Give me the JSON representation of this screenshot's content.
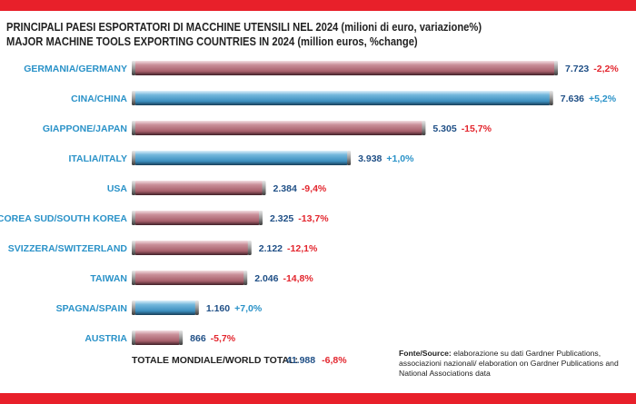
{
  "header": {
    "title_it": "PRINCIPALI PAESI ESPORTATORI DI MACCHINE UTENSILI NEL 2024 (milioni di euro, variazione%)",
    "title_en": "MAJOR MACHINE TOOLS EXPORTING COUNTRIES IN 2024 (million euros, %change)"
  },
  "colors": {
    "top_bar": "#e8202a",
    "bar_mauve": "#b87480",
    "bar_blue": "#5aa7cf",
    "label_blue": "#2a92c8",
    "value_navy": "#1f4f86",
    "change_red": "#e3262e"
  },
  "chart_data": {
    "type": "bar",
    "orientation": "horizontal",
    "categories": [
      "GERMANIA/GERMANY",
      "CINA/CHINA",
      "GIAPPONE/JAPAN",
      "ITALIA/ITALY",
      "USA",
      "COREA SUD/SOUTH KOREA",
      "SVIZZERA/SWITZERLAND",
      "TAIWAN",
      "SPAGNA/SPAIN",
      "AUSTRIA"
    ],
    "values": [
      7723,
      7636,
      5305,
      3938,
      2384,
      2325,
      2122,
      2046,
      1160,
      866
    ],
    "value_labels": [
      "7.723",
      "7.636",
      "5.305",
      "3.938",
      "2.384",
      "2.325",
      "2.122",
      "2.046",
      "1.160",
      "866"
    ],
    "change_labels": [
      "-2,2%",
      "+5,2%",
      "-15,7%",
      "+1,0%",
      "-9,4%",
      "-13,7%",
      "-12,1%",
      "-14,8%",
      "+7,0%",
      "-5,7%"
    ],
    "change_positive": [
      false,
      true,
      false,
      true,
      false,
      false,
      false,
      false,
      true,
      false
    ],
    "bar_colors": [
      "mauve",
      "blue",
      "mauve",
      "blue",
      "mauve",
      "mauve",
      "mauve",
      "mauve",
      "blue",
      "mauve"
    ],
    "xlim": [
      0,
      7723
    ],
    "grid": false,
    "total": {
      "label": "TOTALE MONDIALE/WORLD TOTAL:",
      "value_label": "41.988",
      "change_label": "-6,8%"
    }
  },
  "source": {
    "label": "Fonte/Source:",
    "text": "elaborazione su dati Gardner Publications, associazioni nazionali/ elaboration on Gardner Publications and National Associations data"
  }
}
